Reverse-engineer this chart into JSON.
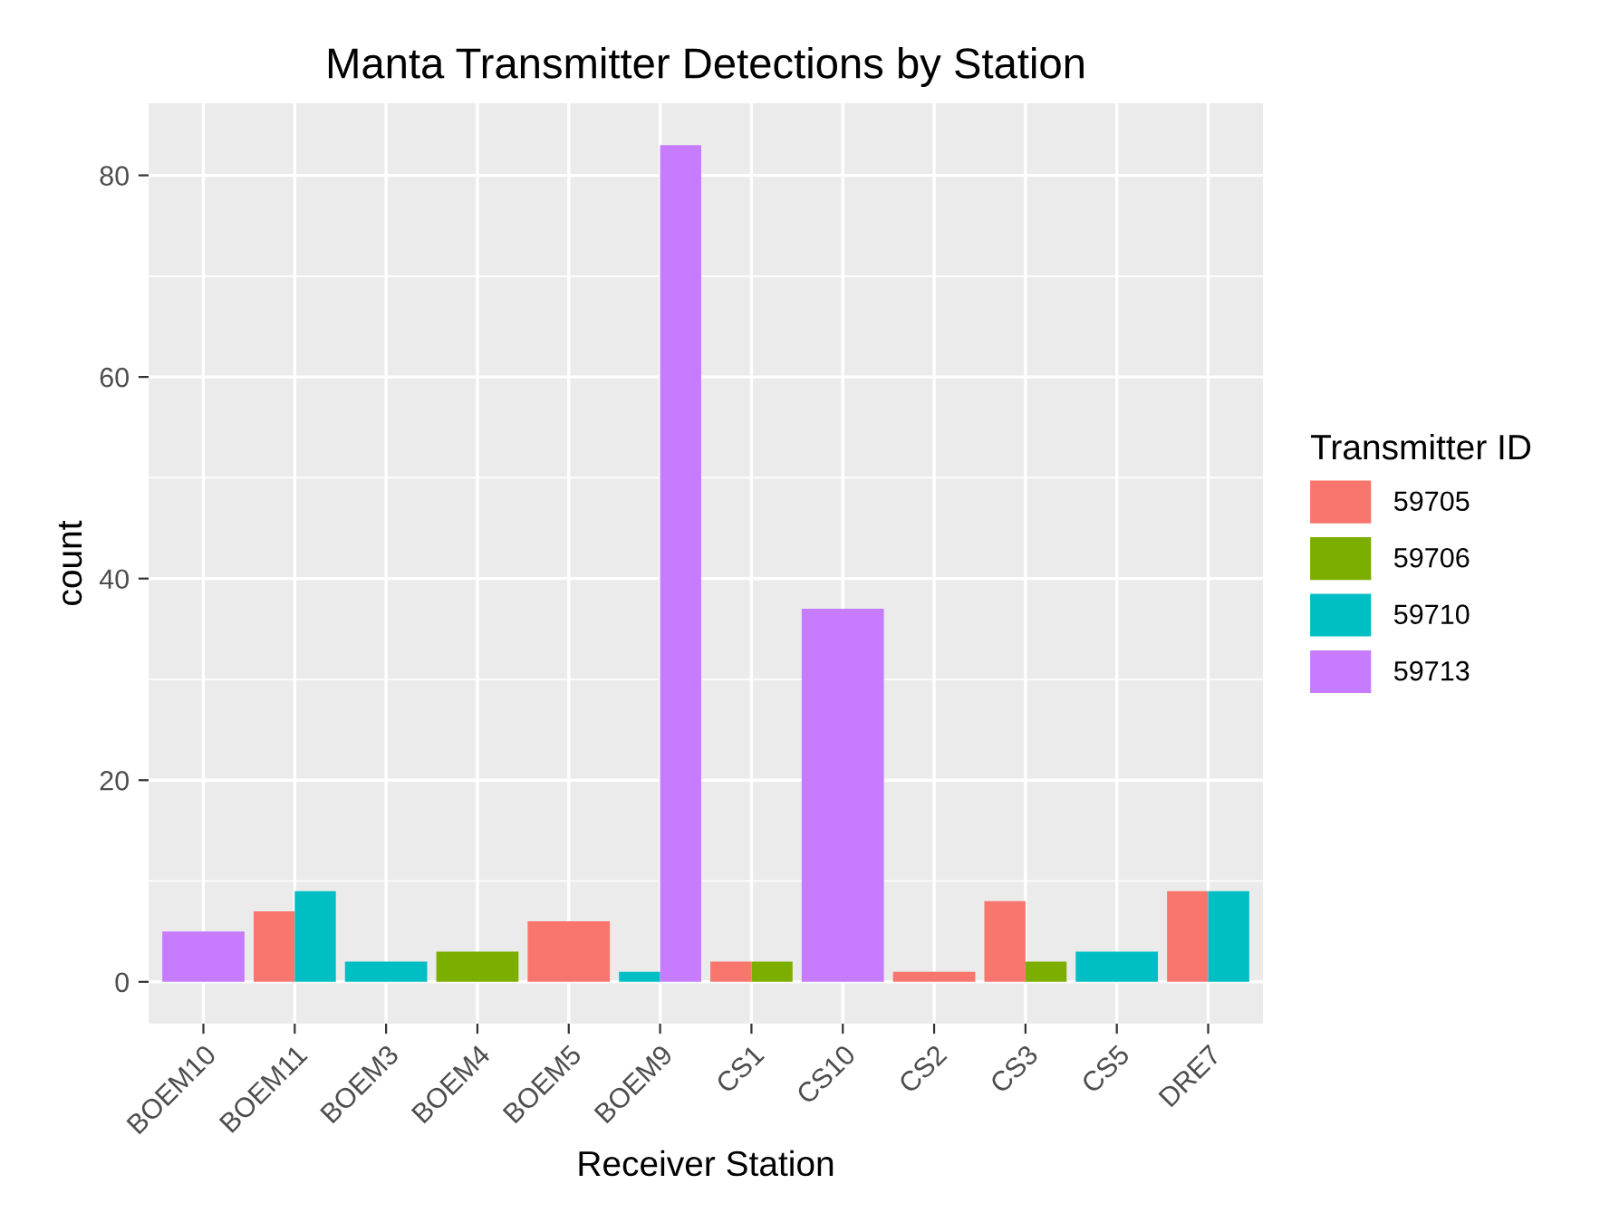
{
  "chart_data": {
    "type": "bar",
    "title": "Manta Transmitter Detections by Station",
    "xlabel": "Receiver Station",
    "ylabel": "count",
    "legend_title": "Transmitter ID",
    "categories": [
      "BOEM10",
      "BOEM11",
      "BOEM3",
      "BOEM4",
      "BOEM5",
      "BOEM9",
      "CS1",
      "CS10",
      "CS2",
      "CS3",
      "CS5",
      "DRE7"
    ],
    "series": [
      {
        "name": "59705",
        "color": "#f8766d",
        "values": [
          null,
          7,
          null,
          null,
          6,
          null,
          2,
          null,
          1,
          8,
          null,
          9
        ]
      },
      {
        "name": "59706",
        "color": "#7cae00",
        "values": [
          null,
          null,
          null,
          3,
          null,
          null,
          2,
          null,
          null,
          2,
          null,
          null
        ]
      },
      {
        "name": "59710",
        "color": "#00bfc4",
        "values": [
          null,
          9,
          2,
          null,
          null,
          1,
          null,
          null,
          null,
          null,
          3,
          9
        ]
      },
      {
        "name": "59713",
        "color": "#c77cff",
        "values": [
          5,
          null,
          null,
          null,
          null,
          83,
          null,
          37,
          null,
          null,
          null,
          null
        ]
      }
    ],
    "ylim": [
      -4.15,
      87.15
    ],
    "yticks": [
      0,
      20,
      40,
      60,
      80
    ],
    "grid": true,
    "legend": "right"
  }
}
